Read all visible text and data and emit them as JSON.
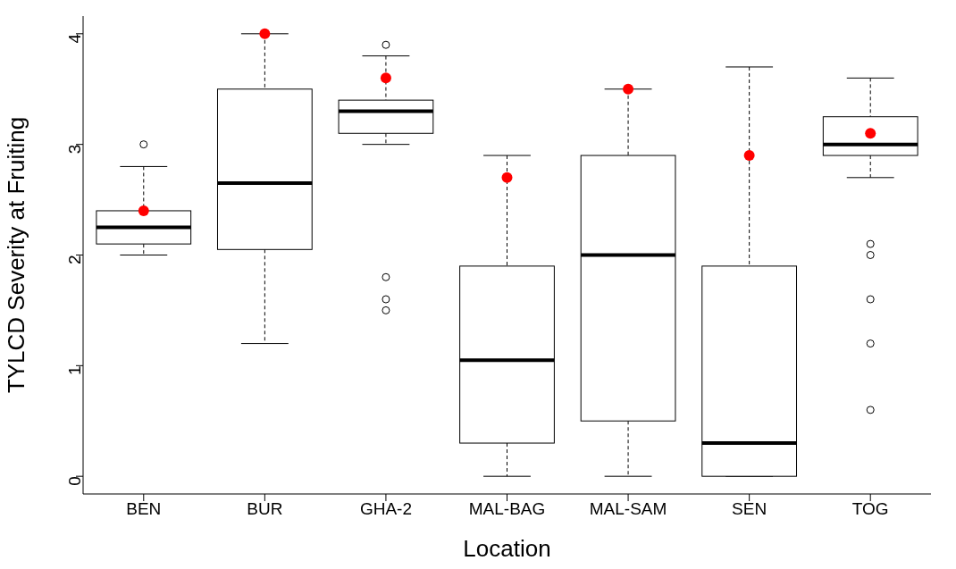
{
  "chart_data": {
    "type": "box",
    "xlabel": "Location",
    "ylabel": "TYLCD Severity at Fruiting",
    "categories": [
      "BEN",
      "BUR",
      "GHA-2",
      "MAL-BAG",
      "MAL-SAM",
      "SEN",
      "TOG"
    ],
    "boxes": [
      {
        "low": 2.0,
        "q1": 2.1,
        "median": 2.25,
        "q3": 2.4,
        "high": 2.8,
        "outliers": [
          3.0
        ]
      },
      {
        "low": 1.2,
        "q1": 2.05,
        "median": 2.65,
        "q3": 3.5,
        "high": 4.0
      },
      {
        "low": 3.0,
        "q1": 3.1,
        "median": 3.3,
        "q3": 3.4,
        "high": 3.8,
        "outliers": [
          3.9,
          1.8,
          1.6,
          1.5
        ]
      },
      {
        "low": 0,
        "q1": 0.3,
        "median": 1.05,
        "q3": 1.9,
        "high": 2.9
      },
      {
        "low": 0,
        "q1": 0.5,
        "median": 2.0,
        "q3": 2.9,
        "high": 3.5
      },
      {
        "low": 0,
        "q1": 0,
        "median": 0.3,
        "q3": 1.9,
        "high": 3.7
      },
      {
        "low": 2.7,
        "q1": 2.9,
        "median": 3.0,
        "q3": 3.25,
        "high": 3.6,
        "outliers": [
          2.1,
          2.0,
          1.6,
          1.2,
          0.6
        ]
      }
    ],
    "series": [
      {
        "type": "scatter",
        "color": "#ff0000",
        "x": [
          "BEN",
          "BUR",
          "GHA-2",
          "MAL-BAG",
          "MAL-SAM",
          "SEN",
          "TOG"
        ],
        "values": [
          2.4,
          4.0,
          3.6,
          2.7,
          3.5,
          2.9,
          3.1
        ]
      }
    ],
    "ylim": [
      -0.16,
      4.16
    ],
    "yticks": [
      0,
      1,
      2,
      3,
      4
    ],
    "grid": false
  }
}
